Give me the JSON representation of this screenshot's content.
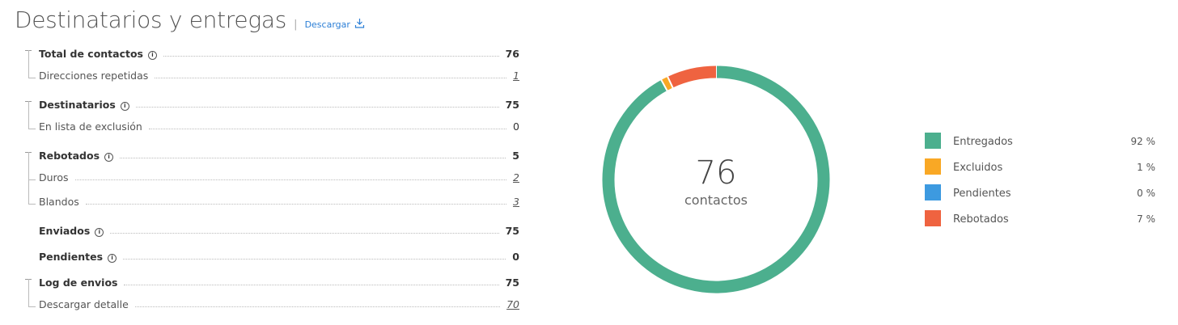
{
  "header": {
    "title": "Destinatarios y entregas",
    "link": "Descargar"
  },
  "stats": [
    {
      "label": "Total de contactos",
      "value": 76,
      "info": true,
      "children": [
        {
          "label": "Direcciones repetidas",
          "value": 1,
          "link": true
        }
      ]
    },
    {
      "label": "Destinatarios",
      "value": 75,
      "info": true,
      "children": [
        {
          "label": "En lista de exclusión",
          "value": 0,
          "link": false
        }
      ]
    },
    {
      "label": "Rebotados",
      "value": 5,
      "info": true,
      "children": [
        {
          "label": "Duros",
          "value": 2,
          "link": true
        },
        {
          "label": "Blandos",
          "value": 3,
          "link": true
        }
      ]
    },
    {
      "label": "Enviados",
      "value": 75,
      "info": true,
      "children": []
    },
    {
      "label": "Pendientes",
      "value": 0,
      "info": true,
      "children": []
    },
    {
      "label": "Log de envios",
      "value": 75,
      "info": false,
      "children": [
        {
          "label": "Descargar detalle",
          "value": 70,
          "link": true
        }
      ]
    }
  ],
  "chart_data": {
    "type": "donut",
    "center_value": 76,
    "center_label": "contactos",
    "categories": [
      "Entregados",
      "Excluidos",
      "Pendientes",
      "Rebotados"
    ],
    "values": [
      92,
      1,
      0,
      7
    ],
    "value_labels": [
      "92 %",
      "1 %",
      "0 %",
      "7 %"
    ],
    "colors": [
      "#4caf8e",
      "#f9a825",
      "#3d9ae0",
      "#ef6340"
    ]
  }
}
